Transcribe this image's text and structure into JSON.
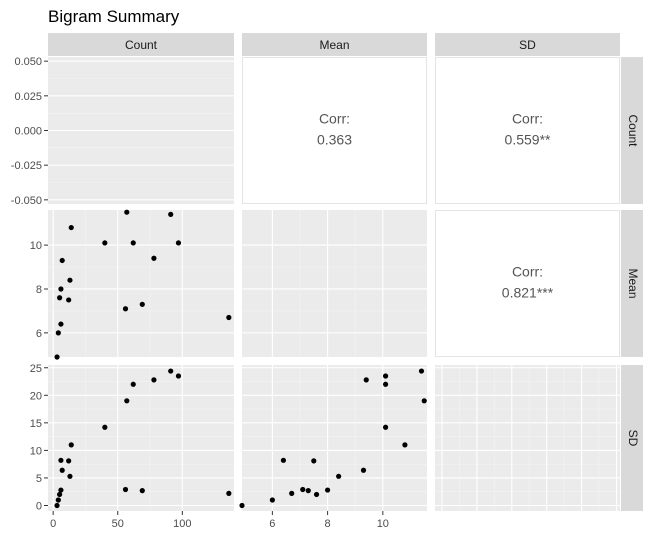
{
  "chart_data": {
    "type": "scatter",
    "title": "Bigram Summary",
    "variables": [
      "Count",
      "Mean",
      "SD"
    ],
    "axes": {
      "Count": {
        "ticks": [
          0,
          50,
          100
        ],
        "range": [
          -4,
          140
        ]
      },
      "Mean": {
        "ticks": [
          6,
          8,
          10
        ],
        "range": [
          4.9,
          11.6
        ]
      },
      "SD": {
        "ticks": [
          0,
          5,
          10,
          15,
          20,
          25
        ],
        "range": [
          -1,
          25.5
        ]
      },
      "density_y": {
        "ticks": [
          0.05,
          0.025,
          0.0,
          -0.025,
          -0.05
        ],
        "tick_labels": [
          "0.050",
          "0.025",
          "0.000",
          "-0.025",
          "-0.050"
        ],
        "range": [
          -0.053,
          0.053
        ]
      }
    },
    "correlations": [
      {
        "row": "Count",
        "col": "Mean",
        "label": "Corr:",
        "value": "0.363"
      },
      {
        "row": "Count",
        "col": "SD",
        "label": "Corr:",
        "value": "0.559**"
      },
      {
        "row": "Mean",
        "col": "SD",
        "label": "Corr:",
        "value": "0.821***"
      }
    ],
    "points": {
      "count": [
        3,
        4,
        5,
        6,
        6,
        7,
        12,
        13,
        14,
        40,
        56,
        57,
        62,
        69,
        78,
        91,
        97,
        136
      ],
      "mean": [
        4.9,
        6.0,
        7.6,
        8.0,
        6.4,
        9.3,
        7.5,
        8.4,
        10.8,
        10.1,
        7.1,
        11.5,
        10.1,
        7.3,
        9.4,
        11.4,
        10.1,
        6.7
      ],
      "sd": [
        0.0,
        1.0,
        2.0,
        2.8,
        8.2,
        6.4,
        8.1,
        5.3,
        11.0,
        14.2,
        2.9,
        19.0,
        22.0,
        2.7,
        22.8,
        24.4,
        23.5,
        2.2
      ]
    }
  }
}
